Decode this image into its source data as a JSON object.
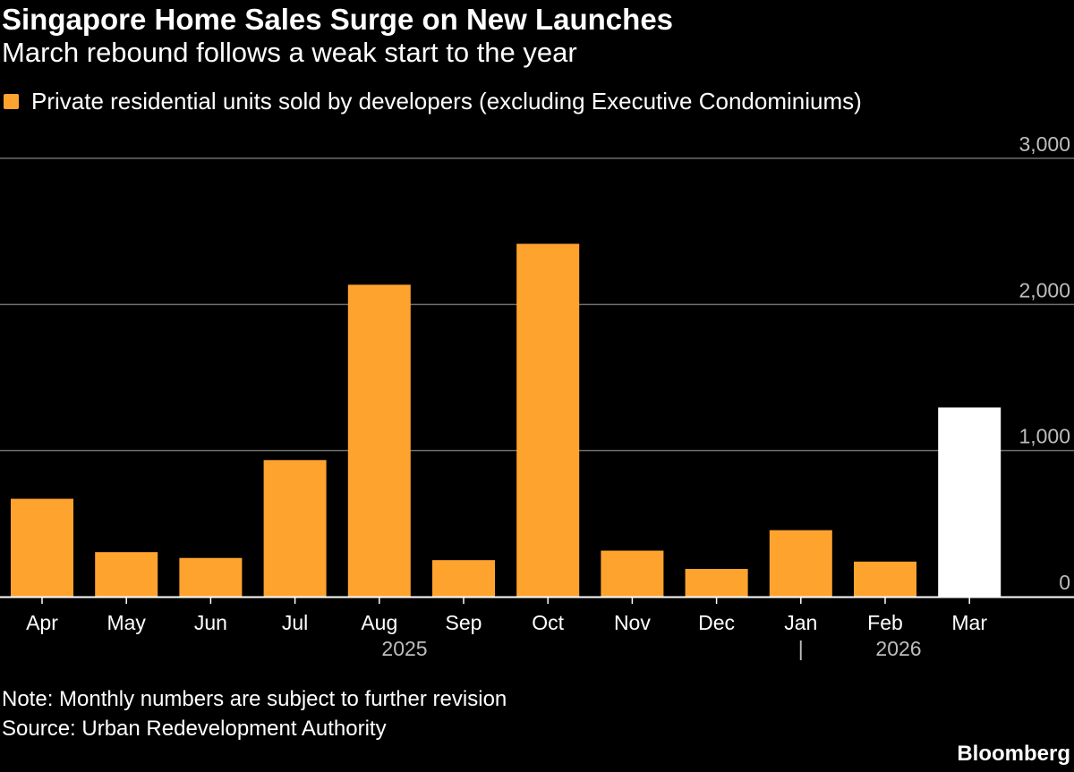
{
  "header": {
    "title": "Singapore Home Sales Surge on New Launches",
    "subtitle": "March rebound follows a weak start to the year"
  },
  "legend": {
    "label": "Private residential units sold by developers (excluding Executive Condominiums)"
  },
  "footer": {
    "note": "Note: Monthly numbers are subject to further revision",
    "source": "Source: Urban Redevelopment Authority",
    "brand": "Bloomberg"
  },
  "colors": {
    "background": "#000000",
    "bar": "#ffa32f",
    "highlight": "#ffffff",
    "grid": "#6e6e6e",
    "axis": "#ffffff",
    "text": "#ffffff",
    "muted": "#bdbdbd"
  },
  "chart_data": {
    "type": "bar",
    "title": "Singapore Home Sales Surge on New Launches",
    "subtitle": "March rebound follows a weak start to the year",
    "xlabel": "",
    "ylabel": "",
    "categories": [
      "Apr",
      "May",
      "Jun",
      "Jul",
      "Aug",
      "Sep",
      "Oct",
      "Nov",
      "Dec",
      "Jan",
      "Feb",
      "Mar"
    ],
    "series": [
      {
        "name": "Private residential units sold by developers (excluding Executive Condominiums)",
        "values": [
          670,
          305,
          265,
          935,
          2135,
          250,
          2415,
          315,
          190,
          455,
          240,
          1295
        ]
      }
    ],
    "highlight_index": 11,
    "year_labels": [
      {
        "label": "2025",
        "start": "Apr",
        "end": "Dec"
      },
      {
        "label": "2026",
        "start": "Jan",
        "end": "Mar"
      }
    ],
    "year_divider": "|",
    "ylim": [
      0,
      3000
    ],
    "yticks": [
      0,
      1000,
      2000,
      3000
    ],
    "ytick_labels": [
      "0",
      "1,000",
      "2,000",
      "3,000"
    ],
    "y_axis_position": "right",
    "grid": true,
    "legend_position": "top-left"
  }
}
